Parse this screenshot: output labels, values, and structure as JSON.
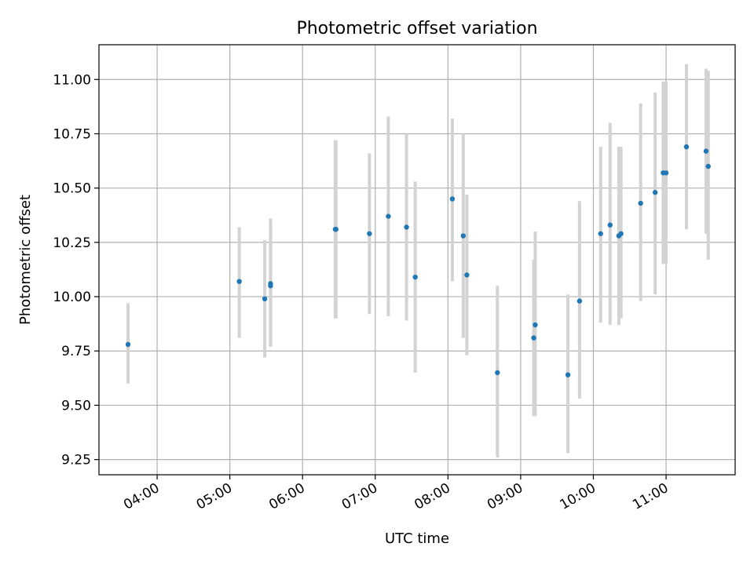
{
  "chart_data": {
    "type": "scatter",
    "title": "Photometric offset variation",
    "xlabel": "UTC time",
    "ylabel": "Photometric offset",
    "x_unit": "hours (UTC)",
    "xlim": [
      3.2,
      11.95
    ],
    "ylim": [
      9.18,
      11.16
    ],
    "x_ticks": [
      {
        "value": 4,
        "label": "04:00"
      },
      {
        "value": 5,
        "label": "05:00"
      },
      {
        "value": 6,
        "label": "06:00"
      },
      {
        "value": 7,
        "label": "07:00"
      },
      {
        "value": 8,
        "label": "08:00"
      },
      {
        "value": 9,
        "label": "09:00"
      },
      {
        "value": 10,
        "label": "10:00"
      },
      {
        "value": 11,
        "label": "11:00"
      }
    ],
    "y_ticks": [
      {
        "value": 9.25,
        "label": "9.25"
      },
      {
        "value": 9.5,
        "label": "9.50"
      },
      {
        "value": 9.75,
        "label": "9.75"
      },
      {
        "value": 10.0,
        "label": "10.00"
      },
      {
        "value": 10.25,
        "label": "10.25"
      },
      {
        "value": 10.5,
        "label": "10.50"
      },
      {
        "value": 10.75,
        "label": "10.75"
      },
      {
        "value": 11.0,
        "label": "11.00"
      }
    ],
    "grid": true,
    "legend": "none",
    "colors": {
      "point": "#1f77b4",
      "errorbar": "#d3d3d3",
      "grid": "#b0b0b0"
    },
    "points": [
      {
        "x": 3.6,
        "y": 9.78,
        "ylow": 9.6,
        "yhigh": 9.97
      },
      {
        "x": 5.13,
        "y": 10.07,
        "ylow": 9.81,
        "yhigh": 10.32
      },
      {
        "x": 5.48,
        "y": 9.99,
        "ylow": 9.72,
        "yhigh": 10.26
      },
      {
        "x": 5.56,
        "y": 10.06,
        "ylow": 9.77,
        "yhigh": 10.36
      },
      {
        "x": 5.56,
        "y": 10.05,
        "ylow": 9.77,
        "yhigh": 10.33
      },
      {
        "x": 6.45,
        "y": 10.31,
        "ylow": 9.9,
        "yhigh": 10.72
      },
      {
        "x": 6.46,
        "y": 10.31,
        "ylow": 9.9,
        "yhigh": 10.72
      },
      {
        "x": 6.92,
        "y": 10.29,
        "ylow": 9.92,
        "yhigh": 10.66
      },
      {
        "x": 7.18,
        "y": 10.37,
        "ylow": 9.91,
        "yhigh": 10.83
      },
      {
        "x": 7.43,
        "y": 10.32,
        "ylow": 9.89,
        "yhigh": 10.75
      },
      {
        "x": 7.55,
        "y": 10.09,
        "ylow": 9.65,
        "yhigh": 10.53
      },
      {
        "x": 8.06,
        "y": 10.45,
        "ylow": 10.07,
        "yhigh": 10.82
      },
      {
        "x": 8.21,
        "y": 10.28,
        "ylow": 9.81,
        "yhigh": 10.75
      },
      {
        "x": 8.26,
        "y": 10.1,
        "ylow": 9.73,
        "yhigh": 10.47
      },
      {
        "x": 8.68,
        "y": 9.65,
        "ylow": 9.26,
        "yhigh": 10.05
      },
      {
        "x": 9.18,
        "y": 9.81,
        "ylow": 9.45,
        "yhigh": 10.17
      },
      {
        "x": 9.2,
        "y": 9.87,
        "ylow": 9.45,
        "yhigh": 10.3
      },
      {
        "x": 9.65,
        "y": 9.64,
        "ylow": 9.28,
        "yhigh": 10.01
      },
      {
        "x": 9.81,
        "y": 9.98,
        "ylow": 9.53,
        "yhigh": 10.44
      },
      {
        "x": 10.1,
        "y": 10.29,
        "ylow": 9.88,
        "yhigh": 10.69
      },
      {
        "x": 10.23,
        "y": 10.33,
        "ylow": 9.87,
        "yhigh": 10.8
      },
      {
        "x": 10.35,
        "y": 10.28,
        "ylow": 9.87,
        "yhigh": 10.69
      },
      {
        "x": 10.38,
        "y": 10.29,
        "ylow": 9.9,
        "yhigh": 10.69
      },
      {
        "x": 10.65,
        "y": 10.43,
        "ylow": 9.98,
        "yhigh": 10.89
      },
      {
        "x": 10.85,
        "y": 10.48,
        "ylow": 10.01,
        "yhigh": 10.94
      },
      {
        "x": 10.96,
        "y": 10.57,
        "ylow": 10.15,
        "yhigh": 10.99
      },
      {
        "x": 11.0,
        "y": 10.57,
        "ylow": 10.15,
        "yhigh": 10.99
      },
      {
        "x": 11.28,
        "y": 10.69,
        "ylow": 10.31,
        "yhigh": 11.07
      },
      {
        "x": 11.55,
        "y": 10.67,
        "ylow": 10.29,
        "yhigh": 11.05
      },
      {
        "x": 11.58,
        "y": 10.6,
        "ylow": 10.17,
        "yhigh": 11.04
      }
    ]
  }
}
